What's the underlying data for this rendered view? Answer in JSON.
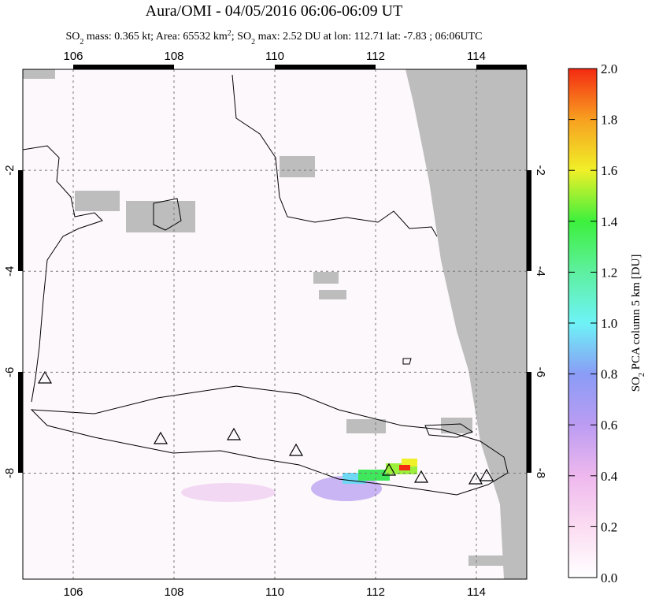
{
  "header": {
    "title": "Aura/OMI - 04/05/2016 06:06-06:09 UT",
    "subtitle": [
      "SO",
      "2",
      " mass: 0.365 kt; Area: 65532 km",
      "2",
      "; SO",
      "2",
      " max: 2.52 DU at lon: 112.71 lat: -7.83 ; 06:06UTC"
    ]
  },
  "map": {
    "xlim": [
      105,
      115
    ],
    "ylim": [
      -10.1,
      0
    ],
    "xticks": [
      106,
      108,
      110,
      112,
      114
    ],
    "yticks": [
      -2,
      -4,
      -6,
      -8
    ]
  },
  "colorbar": {
    "label": [
      "SO",
      "2",
      " PCA column 5 km [DU]"
    ],
    "lim": [
      0,
      2
    ],
    "ticks": [
      {
        "value": 0,
        "label": "0.0"
      },
      0.2,
      0.4,
      0.6,
      0.8,
      {
        "value": 1,
        "label": "1.0"
      },
      1.2,
      1.4,
      1.6,
      1.8,
      {
        "value": 2,
        "label": "2.0"
      }
    ]
  }
}
